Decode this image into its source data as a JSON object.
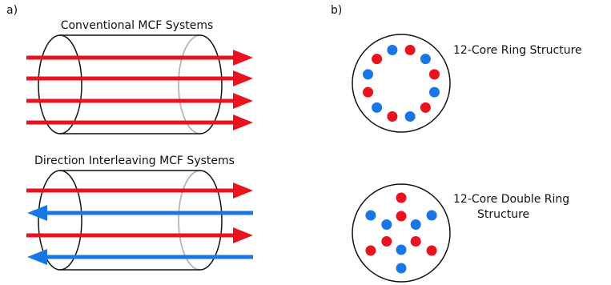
{
  "panel_a": {
    "label": "a)",
    "conventional": {
      "title": "Conventional MCF Systems",
      "arrows": [
        "forward",
        "forward",
        "forward",
        "forward"
      ]
    },
    "interleaved": {
      "title": "Direction Interleaving MCF Systems",
      "arrows": [
        "forward",
        "backward",
        "forward",
        "backward"
      ]
    }
  },
  "panel_b": {
    "label": "b)",
    "ring": {
      "label": "12-Core Ring Structure",
      "cores": [
        "red",
        "blue",
        "red",
        "blue",
        "red",
        "blue",
        "red",
        "blue",
        "red",
        "blue",
        "red",
        "blue"
      ]
    },
    "double_ring": {
      "label_line1": "12-Core Double Ring",
      "label_line2": "Structure",
      "outer_cores": [
        "red",
        "blue",
        "red",
        "blue",
        "red",
        "blue"
      ],
      "inner_cores": [
        "blue",
        "red",
        "blue",
        "red",
        "blue",
        "red"
      ]
    }
  },
  "colors": {
    "forward": "#e8131f",
    "backward": "#1876e6",
    "outline": "#111111",
    "hidden_edge": "#b5b5b5"
  }
}
